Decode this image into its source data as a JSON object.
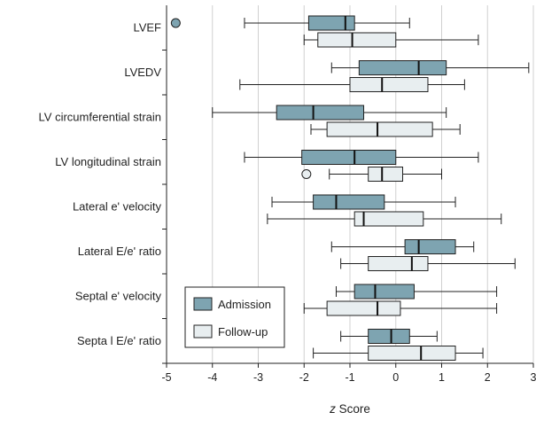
{
  "chart_data": {
    "type": "boxplot",
    "orientation": "horizontal",
    "categories": [
      "LVEF",
      "LVEDV",
      "LV circumferential strain",
      "LV longitudinal strain",
      "Lateral e' velocity",
      "Lateral E/e' ratio",
      "Septal e' velocity",
      "Septa l E/e' ratio"
    ],
    "xlabel_italic": "z",
    "xlabel_rest": " Score",
    "xlim": [
      -5,
      3
    ],
    "xticks": [
      "-5",
      "-4",
      "-3",
      "-2",
      "-1",
      "0",
      "1",
      "2",
      "3"
    ],
    "grid": "vertical",
    "legend_position": "bottom-left",
    "series": [
      {
        "name": "Admission",
        "color": "#7ea4b1",
        "boxes": [
          {
            "whisker_low": -3.3,
            "q1": -1.9,
            "median": -1.1,
            "q3": -0.9,
            "whisker_high": 0.3,
            "outliers": [
              -4.8
            ]
          },
          {
            "whisker_low": -1.4,
            "q1": -0.8,
            "median": 0.5,
            "q3": 1.1,
            "whisker_high": 2.9,
            "outliers": []
          },
          {
            "whisker_low": -4.0,
            "q1": -2.6,
            "median": -1.8,
            "q3": -0.7,
            "whisker_high": 1.1,
            "outliers": []
          },
          {
            "whisker_low": -3.3,
            "q1": -2.05,
            "median": -0.9,
            "q3": 0.0,
            "whisker_high": 1.8,
            "outliers": []
          },
          {
            "whisker_low": -2.7,
            "q1": -1.8,
            "median": -1.3,
            "q3": -0.25,
            "whisker_high": 1.3,
            "outliers": []
          },
          {
            "whisker_low": -1.4,
            "q1": 0.2,
            "median": 0.5,
            "q3": 1.3,
            "whisker_high": 1.7,
            "outliers": []
          },
          {
            "whisker_low": -1.3,
            "q1": -0.9,
            "median": -0.45,
            "q3": 0.4,
            "whisker_high": 2.2,
            "outliers": []
          },
          {
            "whisker_low": -1.2,
            "q1": -0.6,
            "median": -0.1,
            "q3": 0.3,
            "whisker_high": 0.9,
            "outliers": []
          }
        ]
      },
      {
        "name": "Follow-up",
        "color": "#e8eef0",
        "boxes": [
          {
            "whisker_low": -2.0,
            "q1": -1.7,
            "median": -0.95,
            "q3": 0.0,
            "whisker_high": 1.8,
            "outliers": []
          },
          {
            "whisker_low": -3.4,
            "q1": -1.0,
            "median": -0.3,
            "q3": 0.7,
            "whisker_high": 1.5,
            "outliers": []
          },
          {
            "whisker_low": -1.85,
            "q1": -1.5,
            "median": -0.4,
            "q3": 0.8,
            "whisker_high": 1.4,
            "outliers": []
          },
          {
            "whisker_low": -1.45,
            "q1": -0.6,
            "median": -0.3,
            "q3": 0.15,
            "whisker_high": 1.0,
            "outliers": [
              -1.95
            ]
          },
          {
            "whisker_low": -2.8,
            "q1": -0.9,
            "median": -0.7,
            "q3": 0.6,
            "whisker_high": 2.3,
            "outliers": []
          },
          {
            "whisker_low": -1.2,
            "q1": -0.6,
            "median": 0.35,
            "q3": 0.7,
            "whisker_high": 2.6,
            "outliers": []
          },
          {
            "whisker_low": -2.0,
            "q1": -1.5,
            "median": -0.4,
            "q3": 0.1,
            "whisker_high": 2.2,
            "outliers": []
          },
          {
            "whisker_low": -1.8,
            "q1": -0.6,
            "median": 0.55,
            "q3": 1.3,
            "whisker_high": 1.9,
            "outliers": []
          }
        ]
      }
    ]
  }
}
